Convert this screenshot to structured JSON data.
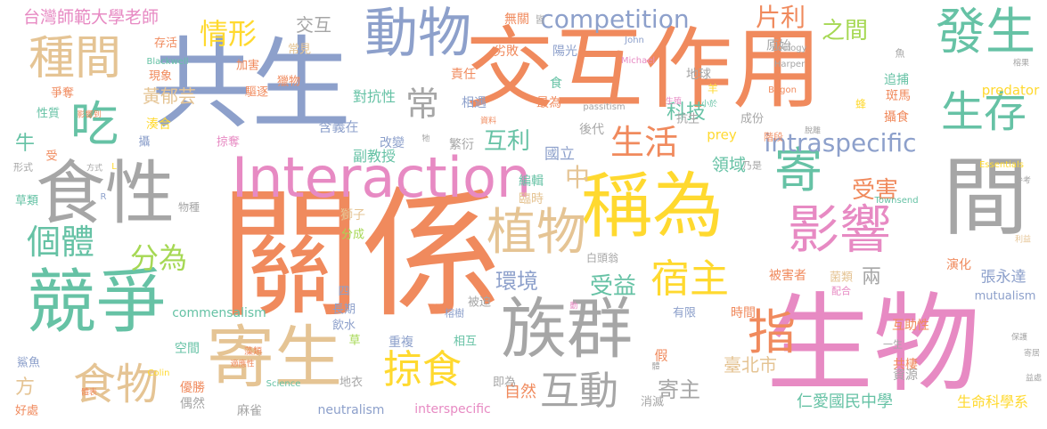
{
  "palette": {
    "orange": "#f08a5d",
    "blue": "#8da0cb",
    "pink": "#e78ac3",
    "green": "#66c2a5",
    "gray": "#a6a6a6",
    "tan": "#e5c494",
    "yellow": "#ffd92f",
    "lime": "#a6d854"
  },
  "words": [
    {
      "text": "關係",
      "color": "orange"
    },
    {
      "text": "共生",
      "color": "blue"
    },
    {
      "text": "交互作用",
      "color": "orange"
    },
    {
      "text": "生物",
      "color": "pink"
    },
    {
      "text": "Interaction",
      "color": "pink"
    },
    {
      "text": "稱為",
      "color": "yellow"
    },
    {
      "text": "食性",
      "color": "gray"
    },
    {
      "text": "競爭",
      "color": "green"
    },
    {
      "text": "族群",
      "color": "gray"
    },
    {
      "text": "間",
      "color": "gray"
    },
    {
      "text": "寄生",
      "color": "tan"
    },
    {
      "text": "動物",
      "color": "blue"
    },
    {
      "text": "發生",
      "color": "green"
    },
    {
      "text": "植物",
      "color": "tan"
    },
    {
      "text": "影響",
      "color": "pink"
    },
    {
      "text": "種間",
      "color": "tan"
    },
    {
      "text": "吃",
      "color": "green"
    },
    {
      "text": "生存",
      "color": "green"
    },
    {
      "text": "寄",
      "color": "green"
    },
    {
      "text": "指",
      "color": "orange"
    },
    {
      "text": "宿主",
      "color": "yellow"
    },
    {
      "text": "個體",
      "color": "green"
    },
    {
      "text": "食物",
      "color": "tan"
    },
    {
      "text": "掠食",
      "color": "yellow"
    },
    {
      "text": "互動",
      "color": "gray"
    },
    {
      "text": "情形",
      "color": "yellow"
    },
    {
      "text": "competition",
      "color": "blue"
    },
    {
      "text": "intraspecific",
      "color": "blue"
    },
    {
      "text": "生活",
      "color": "orange"
    },
    {
      "text": "常",
      "color": "gray"
    },
    {
      "text": "分為",
      "color": "lime"
    },
    {
      "text": "片利",
      "color": "orange"
    },
    {
      "text": "之間",
      "color": "lime"
    },
    {
      "text": "受害",
      "color": "orange"
    },
    {
      "text": "受益",
      "color": "green"
    },
    {
      "text": "環境",
      "color": "blue"
    },
    {
      "text": "寄主",
      "color": "gray"
    },
    {
      "text": "互利",
      "color": "green"
    },
    {
      "text": "中",
      "color": "tan"
    },
    {
      "text": "科技",
      "color": "green"
    },
    {
      "text": "交互",
      "color": "gray"
    },
    {
      "text": "台灣師範大學老師",
      "color": "pink"
    },
    {
      "text": "黃郁芸",
      "color": "tan"
    },
    {
      "text": "臺北市",
      "color": "tan"
    },
    {
      "text": "仁愛國民中學",
      "color": "green"
    },
    {
      "text": "張永達",
      "color": "blue"
    },
    {
      "text": "生命科學系",
      "color": "yellow"
    },
    {
      "text": "neutralism",
      "color": "blue"
    },
    {
      "text": "interspecific",
      "color": "pink"
    },
    {
      "text": "commensalism",
      "color": "green"
    },
    {
      "text": "mutualism",
      "color": "blue"
    },
    {
      "text": "predator",
      "color": "yellow"
    },
    {
      "text": "prey",
      "color": "yellow"
    },
    {
      "text": "自然",
      "color": "orange"
    },
    {
      "text": "國立",
      "color": "blue"
    },
    {
      "text": "領域",
      "color": "green"
    },
    {
      "text": "兩",
      "color": "gray"
    },
    {
      "text": "牛",
      "color": "green"
    },
    {
      "text": "方",
      "color": "tan"
    },
    {
      "text": "副教授",
      "color": "green"
    },
    {
      "text": "對抗性",
      "color": "green"
    },
    {
      "text": "含義在",
      "color": "blue"
    },
    {
      "text": "改變",
      "color": "blue"
    },
    {
      "text": "繁衍",
      "color": "gray"
    },
    {
      "text": "後代",
      "color": "gray"
    },
    {
      "text": "編輯",
      "color": "green"
    },
    {
      "text": "臨時",
      "color": "tan"
    },
    {
      "text": "獅子",
      "color": "tan"
    },
    {
      "text": "分成",
      "color": "lime"
    },
    {
      "text": "無關",
      "color": "orange"
    },
    {
      "text": "皆",
      "color": "gray"
    },
    {
      "text": "陽光",
      "color": "blue"
    },
    {
      "text": "劣敗",
      "color": "orange"
    },
    {
      "text": "責任",
      "color": "orange"
    },
    {
      "text": "相遇",
      "color": "blue"
    },
    {
      "text": "最為",
      "color": "orange"
    },
    {
      "text": "食",
      "color": "green"
    },
    {
      "text": "地球",
      "color": "gray"
    },
    {
      "text": "原始",
      "color": "gray"
    },
    {
      "text": "追捕",
      "color": "green"
    },
    {
      "text": "斑馬",
      "color": "orange"
    },
    {
      "text": "攝食",
      "color": "orange"
    },
    {
      "text": "成份",
      "color": "gray"
    },
    {
      "text": "抗生",
      "color": "gray"
    },
    {
      "text": "階段",
      "color": "orange"
    },
    {
      "text": "演化",
      "color": "orange"
    },
    {
      "text": "被害者",
      "color": "orange"
    },
    {
      "text": "菌類",
      "color": "tan"
    },
    {
      "text": "配合",
      "color": "pink"
    },
    {
      "text": "共棲",
      "color": "orange"
    },
    {
      "text": "資源",
      "color": "gray"
    },
    {
      "text": "互助性",
      "color": "orange"
    },
    {
      "text": "時間",
      "color": "orange"
    },
    {
      "text": "有限",
      "color": "blue"
    },
    {
      "text": "消滅",
      "color": "gray"
    },
    {
      "text": "即為",
      "color": "gray"
    },
    {
      "text": "重複",
      "color": "blue"
    },
    {
      "text": "相互",
      "color": "green"
    },
    {
      "text": "長期",
      "color": "blue"
    },
    {
      "text": "飲水",
      "color": "blue"
    },
    {
      "text": "草",
      "color": "lime"
    },
    {
      "text": "空間",
      "color": "green"
    },
    {
      "text": "優勝",
      "color": "orange"
    },
    {
      "text": "偶然",
      "color": "gray"
    },
    {
      "text": "麻雀",
      "color": "gray"
    },
    {
      "text": "地衣",
      "color": "gray"
    },
    {
      "text": "加害",
      "color": "orange"
    },
    {
      "text": "常見",
      "color": "tan"
    },
    {
      "text": "驅逐",
      "color": "orange"
    },
    {
      "text": "獵物",
      "color": "orange"
    },
    {
      "text": "存活",
      "color": "orange"
    },
    {
      "text": "現象",
      "color": "orange"
    },
    {
      "text": "爭奪",
      "color": "orange"
    },
    {
      "text": "性質",
      "color": "green"
    },
    {
      "text": "湊合",
      "color": "yellow"
    },
    {
      "text": "攝",
      "color": "blue"
    },
    {
      "text": "掠奪",
      "color": "pink"
    },
    {
      "text": "受",
      "color": "orange"
    },
    {
      "text": "形式",
      "color": "gray"
    },
    {
      "text": "草類",
      "color": "green"
    },
    {
      "text": "物種",
      "color": "gray"
    },
    {
      "text": "鯊魚",
      "color": "blue"
    },
    {
      "text": "好處",
      "color": "orange"
    },
    {
      "text": "四",
      "color": "blue"
    },
    {
      "text": "被迫",
      "color": "gray"
    },
    {
      "text": "白頭翁",
      "color": "gray"
    },
    {
      "text": "榕樹",
      "color": "blue"
    },
    {
      "text": "羊",
      "color": "yellow"
    },
    {
      "text": "蜂",
      "color": "yellow"
    },
    {
      "text": "魚",
      "color": "gray"
    },
    {
      "text": "乃是",
      "color": "gray"
    },
    {
      "text": "一生",
      "color": "gray"
    },
    {
      "text": "假",
      "color": "orange"
    },
    {
      "text": "影響到",
      "color": "orange"
    },
    {
      "text": "資料",
      "color": "orange"
    },
    {
      "text": "生殖",
      "color": "pink"
    },
    {
      "text": "小於",
      "color": "green"
    },
    {
      "text": "脫離",
      "color": "gray"
    },
    {
      "text": "榕果",
      "color": "gray"
    },
    {
      "text": "參考",
      "color": "gray"
    },
    {
      "text": "寄居",
      "color": "gray"
    },
    {
      "text": "利益",
      "color": "tan"
    },
    {
      "text": "保護",
      "color": "gray"
    },
    {
      "text": "益處",
      "color": "gray"
    },
    {
      "text": "藻類",
      "color": "orange"
    },
    {
      "text": "適應性",
      "color": "orange"
    },
    {
      "text": "體表",
      "color": "orange"
    },
    {
      "text": "方式",
      "color": "gray"
    },
    {
      "text": "體",
      "color": "gray"
    },
    {
      "text": "動",
      "color": "pink"
    },
    {
      "text": "牠",
      "color": "gray"
    },
    {
      "text": "John",
      "color": "blue"
    },
    {
      "text": "Michael",
      "color": "pink"
    },
    {
      "text": "Harper",
      "color": "gray"
    },
    {
      "text": "Begon",
      "color": "orange"
    },
    {
      "text": "ecology",
      "color": "gray"
    },
    {
      "text": "passitism",
      "color": "gray"
    },
    {
      "text": "Blackwell",
      "color": "green"
    },
    {
      "text": "Townsend",
      "color": "green"
    },
    {
      "text": "Essentials",
      "color": "yellow"
    },
    {
      "text": "Colin",
      "color": "yellow"
    },
    {
      "text": "Science",
      "color": "green"
    },
    {
      "text": "L",
      "color": "yellow"
    },
    {
      "text": "R",
      "color": "blue"
    }
  ]
}
